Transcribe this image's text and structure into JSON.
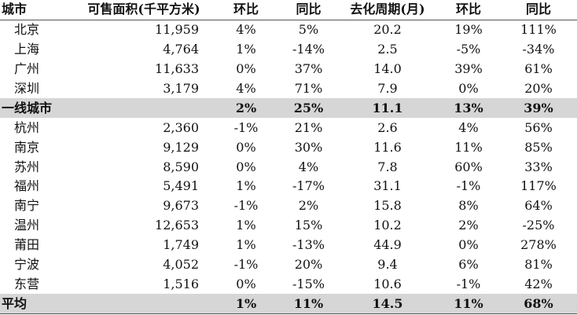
{
  "table": {
    "headers": [
      "城市",
      "可售面积(千平方米)",
      "环比",
      "同比",
      "去化周期(月)",
      "环比",
      "同比"
    ],
    "rows": [
      {
        "city": "北京",
        "area": "11,959",
        "mom": "4%",
        "yoy": "5%",
        "cycle": "20.2",
        "cycle_mom": "19%",
        "cycle_yoy": "111%"
      },
      {
        "city": "上海",
        "area": "4,764",
        "mom": "1%",
        "yoy": "-14%",
        "cycle": "2.5",
        "cycle_mom": "-5%",
        "cycle_yoy": "-34%"
      },
      {
        "city": "广州",
        "area": "11,633",
        "mom": "0%",
        "yoy": "37%",
        "cycle": "14.0",
        "cycle_mom": "39%",
        "cycle_yoy": "61%"
      },
      {
        "city": "深圳",
        "area": "3,179",
        "mom": "4%",
        "yoy": "71%",
        "cycle": "7.9",
        "cycle_mom": "0%",
        "cycle_yoy": "20%"
      },
      {
        "city": "一线城市",
        "area": "",
        "mom": "2%",
        "yoy": "25%",
        "cycle": "11.1",
        "cycle_mom": "13%",
        "cycle_yoy": "39%"
      },
      {
        "city": "杭州",
        "area": "2,360",
        "mom": "-1%",
        "yoy": "21%",
        "cycle": "2.6",
        "cycle_mom": "4%",
        "cycle_yoy": "56%"
      },
      {
        "city": "南京",
        "area": "9,129",
        "mom": "0%",
        "yoy": "30%",
        "cycle": "11.6",
        "cycle_mom": "11%",
        "cycle_yoy": "85%"
      },
      {
        "city": "苏州",
        "area": "8,590",
        "mom": "0%",
        "yoy": "4%",
        "cycle": "7.8",
        "cycle_mom": "60%",
        "cycle_yoy": "33%"
      },
      {
        "city": "福州",
        "area": "5,491",
        "mom": "1%",
        "yoy": "-17%",
        "cycle": "31.1",
        "cycle_mom": "-1%",
        "cycle_yoy": "117%"
      },
      {
        "city": "南宁",
        "area": "9,673",
        "mom": "-1%",
        "yoy": "2%",
        "cycle": "15.8",
        "cycle_mom": "8%",
        "cycle_yoy": "64%"
      },
      {
        "city": "温州",
        "area": "12,653",
        "mom": "1%",
        "yoy": "15%",
        "cycle": "10.2",
        "cycle_mom": "2%",
        "cycle_yoy": "-25%"
      },
      {
        "city": "莆田",
        "area": "1,749",
        "mom": "1%",
        "yoy": "-13%",
        "cycle": "44.9",
        "cycle_mom": "0%",
        "cycle_yoy": "278%"
      },
      {
        "city": "宁波",
        "area": "4,052",
        "mom": "-1%",
        "yoy": "20%",
        "cycle": "9.4",
        "cycle_mom": "6%",
        "cycle_yoy": "81%"
      },
      {
        "city": "东营",
        "area": "1,516",
        "mom": "0%",
        "yoy": "-15%",
        "cycle": "10.6",
        "cycle_mom": "-1%",
        "cycle_yoy": "42%"
      },
      {
        "city": "平均",
        "area": "",
        "mom": "1%",
        "yoy": "11%",
        "cycle": "14.5",
        "cycle_mom": "11%",
        "cycle_yoy": "68%"
      }
    ]
  }
}
